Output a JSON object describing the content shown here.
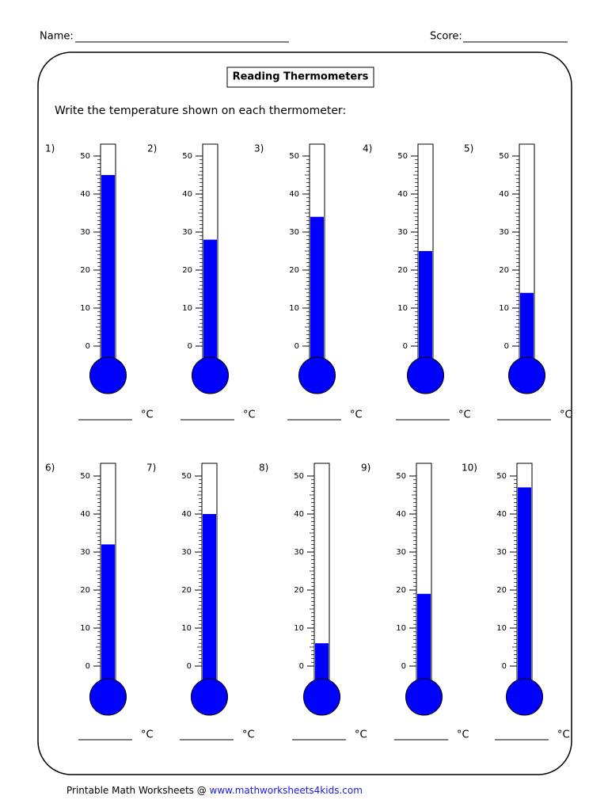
{
  "header": {
    "name_label": "Name:",
    "score_label": "Score:"
  },
  "title": "Reading Thermometers",
  "instruction": "Write the temperature shown on each thermometer:",
  "scale": {
    "ticks": [
      0,
      10,
      20,
      30,
      40,
      50
    ],
    "unit": "°C"
  },
  "thermometers": [
    {
      "label": "1)",
      "value": 45
    },
    {
      "label": "2)",
      "value": 28
    },
    {
      "label": "3)",
      "value": 34
    },
    {
      "label": "4)",
      "value": 25
    },
    {
      "label": "5)",
      "value": 14
    },
    {
      "label": "6)",
      "value": 32
    },
    {
      "label": "7)",
      "value": 40
    },
    {
      "label": "8)",
      "value": 6
    },
    {
      "label": "9)",
      "value": 19
    },
    {
      "label": "10)",
      "value": 47
    }
  ],
  "footer": {
    "text": "Printable Math Worksheets @",
    "link": "www.mathworksheets4kids.com"
  }
}
